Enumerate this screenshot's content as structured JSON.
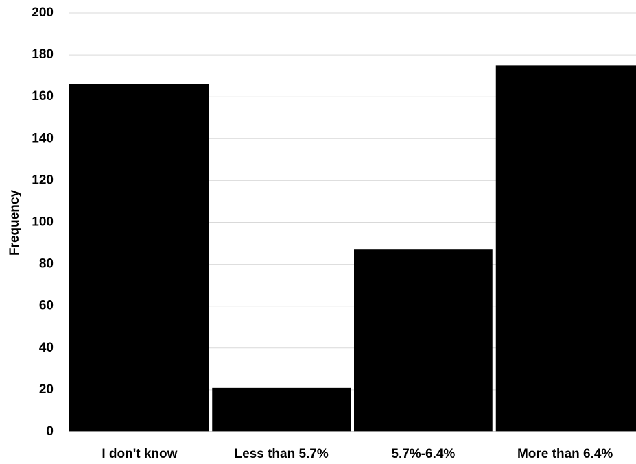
{
  "chart_data": {
    "type": "bar",
    "title": "",
    "xlabel": "",
    "ylabel": "Frequency",
    "categories": [
      "I don't know",
      "Less than 5.7%",
      "5.7%-6.4%",
      "More than 6.4%"
    ],
    "values": [
      166,
      21,
      87,
      175
    ],
    "ylim": [
      0,
      200
    ],
    "yticks": [
      0,
      20,
      40,
      60,
      80,
      100,
      120,
      140,
      160,
      180,
      200
    ],
    "grid": true,
    "legend": "none",
    "bar_color": "#000000",
    "grid_color": "#d9d9d9"
  }
}
